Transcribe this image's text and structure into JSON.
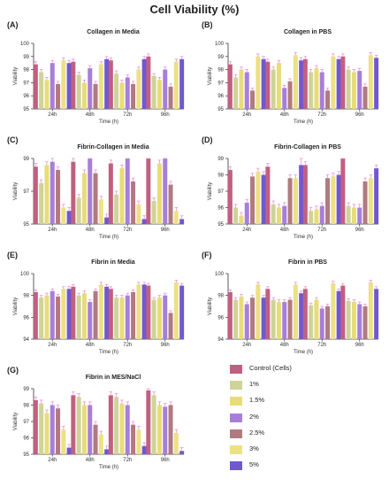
{
  "title": "Cell Viability (%)",
  "series_colors": [
    "#c06080",
    "#cfd39a",
    "#e8dc78",
    "#a77fd9",
    "#b07a80",
    "#ece088",
    "#7058d0"
  ],
  "error_color": "#e890dc",
  "legend": {
    "items": [
      "Control (Cells)",
      "1%",
      "1.5%",
      "2%",
      "2.5%",
      "3%",
      "5%"
    ]
  },
  "chart_data": [
    {
      "letter": "(A)",
      "title": "Collagen in Media",
      "type": "bar",
      "xlabel": "Time (h)",
      "ylabel": "Viability",
      "ylim": [
        95,
        100
      ],
      "yticks": [
        95,
        96,
        97,
        98,
        99,
        100
      ],
      "categories": [
        "24h",
        "48h",
        "72h",
        "96h"
      ],
      "series": [
        {
          "name": "Control (Cells)",
          "values": [
            98.4,
            98.6,
            98.7,
            99.0
          ],
          "errors": [
            0.2,
            0.2,
            0.2,
            0.2
          ]
        },
        {
          "name": "1%",
          "values": [
            97.8,
            97.6,
            97.7,
            97.5
          ],
          "errors": [
            0.2,
            0.2,
            0.2,
            0.2
          ]
        },
        {
          "name": "1.5%",
          "values": [
            97.2,
            97.0,
            97.0,
            97.2
          ],
          "errors": [
            0.2,
            0.2,
            0.2,
            0.2
          ]
        },
        {
          "name": "2%",
          "values": [
            98.5,
            98.1,
            97.4,
            98.0
          ],
          "errors": [
            0.2,
            0.2,
            0.2,
            0.2
          ]
        },
        {
          "name": "2.5%",
          "values": [
            96.9,
            96.9,
            96.9,
            96.7
          ],
          "errors": [
            0.2,
            0.2,
            0.2,
            0.2
          ]
        },
        {
          "name": "3%",
          "values": [
            98.7,
            98.4,
            98.0,
            98.6
          ],
          "errors": [
            0.2,
            0.2,
            0.2,
            0.2
          ]
        },
        {
          "name": "5%",
          "values": [
            98.5,
            98.8,
            98.8,
            98.8
          ],
          "errors": [
            0.2,
            0.2,
            0.2,
            0.2
          ]
        }
      ]
    },
    {
      "letter": "(B)",
      "title": "Collagen in PBS",
      "type": "bar",
      "xlabel": "Time (h)",
      "ylabel": "Viability",
      "ylim": [
        95,
        100
      ],
      "yticks": [
        95,
        96,
        97,
        98,
        99,
        100
      ],
      "categories": [
        "24h",
        "48h",
        "72h",
        "96h"
      ],
      "series": [
        {
          "name": "Control (Cells)",
          "values": [
            98.4,
            98.6,
            98.8,
            99.0
          ],
          "errors": [
            0.2,
            0.2,
            0.2,
            0.2
          ]
        },
        {
          "name": "1%",
          "values": [
            97.4,
            98.0,
            97.8,
            98.0
          ],
          "errors": [
            0.2,
            0.2,
            0.2,
            0.2
          ]
        },
        {
          "name": "1.5%",
          "values": [
            98.0,
            98.5,
            98.1,
            97.8
          ],
          "errors": [
            0.2,
            0.2,
            0.2,
            0.2
          ]
        },
        {
          "name": "2%",
          "values": [
            97.8,
            96.6,
            97.8,
            97.9
          ],
          "errors": [
            0.2,
            0.2,
            0.2,
            0.2
          ]
        },
        {
          "name": "2.5%",
          "values": [
            96.4,
            97.1,
            96.4,
            96.7
          ],
          "errors": [
            0.2,
            0.2,
            0.2,
            0.2
          ]
        },
        {
          "name": "3%",
          "values": [
            99.0,
            99.1,
            99.0,
            99.1
          ],
          "errors": [
            0.2,
            0.2,
            0.2,
            0.2
          ]
        },
        {
          "name": "5%",
          "values": [
            98.8,
            98.7,
            98.8,
            98.9
          ],
          "errors": [
            0.2,
            0.2,
            0.2,
            0.2
          ]
        }
      ]
    },
    {
      "letter": "(C)",
      "title": "Fibrin-Collagen in Media",
      "type": "bar",
      "xlabel": "Time (h)",
      "ylabel": "Viability",
      "ylim": [
        95,
        99
      ],
      "yticks": [
        95,
        97,
        99
      ],
      "categories": [
        "24h",
        "48h",
        "72h",
        "96h"
      ],
      "series": [
        {
          "name": "Control (Cells)",
          "values": [
            98.5,
            98.8,
            98.7,
            99.0
          ],
          "errors": [
            0.2,
            0.2,
            0.2,
            0.2
          ]
        },
        {
          "name": "1%",
          "values": [
            97.5,
            96.6,
            96.8,
            96.4
          ],
          "errors": [
            0.2,
            0.2,
            0.2,
            0.2
          ]
        },
        {
          "name": "1.5%",
          "values": [
            98.6,
            98.1,
            98.4,
            98.7
          ],
          "errors": [
            0.2,
            0.2,
            0.2,
            0.2
          ]
        },
        {
          "name": "2%",
          "values": [
            98.8,
            99.0,
            99.0,
            99.0
          ],
          "errors": [
            0.2,
            0.2,
            0.2,
            0.2
          ]
        },
        {
          "name": "2.5%",
          "values": [
            98.3,
            98.1,
            97.6,
            97.4
          ],
          "errors": [
            0.2,
            0.2,
            0.2,
            0.2
          ]
        },
        {
          "name": "3%",
          "values": [
            96.0,
            96.5,
            96.2,
            95.8
          ],
          "errors": [
            0.2,
            0.2,
            0.2,
            0.2
          ]
        },
        {
          "name": "5%",
          "values": [
            95.8,
            95.4,
            95.3,
            95.3
          ],
          "errors": [
            0.2,
            0.2,
            0.2,
            0.2
          ]
        }
      ]
    },
    {
      "letter": "(D)",
      "title": "Fibrin-Collagen in PBS",
      "type": "bar",
      "xlabel": "Time (h)",
      "ylabel": "Viability",
      "ylim": [
        95,
        99
      ],
      "yticks": [
        95,
        96,
        97,
        98,
        99
      ],
      "categories": [
        "24h",
        "48h",
        "72h",
        "96h"
      ],
      "series": [
        {
          "name": "Control (Cells)",
          "values": [
            98.3,
            98.5,
            98.6,
            99.0
          ],
          "errors": [
            0.2,
            0.2,
            0.2,
            0.2
          ]
        },
        {
          "name": "1%",
          "values": [
            96.0,
            96.2,
            95.8,
            96.1
          ],
          "errors": [
            0.2,
            0.2,
            0.2,
            0.2
          ]
        },
        {
          "name": "1.5%",
          "values": [
            95.5,
            96.0,
            95.9,
            96.0
          ],
          "errors": [
            0.2,
            0.2,
            0.2,
            0.2
          ]
        },
        {
          "name": "2%",
          "values": [
            96.3,
            96.1,
            96.1,
            96.0
          ],
          "errors": [
            0.2,
            0.2,
            0.2,
            0.2
          ]
        },
        {
          "name": "2.5%",
          "values": [
            97.9,
            97.8,
            97.8,
            97.6
          ],
          "errors": [
            0.2,
            0.2,
            0.2,
            0.2
          ]
        },
        {
          "name": "3%",
          "values": [
            98.2,
            97.8,
            97.9,
            97.8
          ],
          "errors": [
            0.2,
            0.2,
            0.2,
            0.2
          ]
        },
        {
          "name": "5%",
          "values": [
            98.0,
            98.6,
            98.0,
            98.4
          ],
          "errors": [
            0.2,
            0.6,
            0.2,
            0.2
          ]
        }
      ]
    },
    {
      "letter": "(E)",
      "title": "Fibrin in Media",
      "type": "bar",
      "xlabel": "Time (h)",
      "ylabel": "Viability",
      "ylim": [
        94,
        100
      ],
      "yticks": [
        94,
        96,
        98,
        100
      ],
      "categories": [
        "24h",
        "48h",
        "72h",
        "96h"
      ],
      "series": [
        {
          "name": "Control (Cells)",
          "values": [
            98.3,
            98.8,
            98.6,
            98.9
          ],
          "errors": [
            0.2,
            0.2,
            0.2,
            0.2
          ]
        },
        {
          "name": "1%",
          "values": [
            97.8,
            98.0,
            97.8,
            97.6
          ],
          "errors": [
            0.2,
            0.2,
            0.2,
            0.2
          ]
        },
        {
          "name": "1.5%",
          "values": [
            98.0,
            98.2,
            97.8,
            97.8
          ],
          "errors": [
            0.2,
            0.2,
            0.2,
            0.2
          ]
        },
        {
          "name": "2%",
          "values": [
            98.4,
            97.4,
            98.0,
            98.0
          ],
          "errors": [
            0.2,
            0.2,
            0.2,
            0.2
          ]
        },
        {
          "name": "2.5%",
          "values": [
            97.9,
            98.4,
            98.3,
            96.4
          ],
          "errors": [
            0.2,
            0.2,
            0.2,
            0.2
          ]
        },
        {
          "name": "3%",
          "values": [
            98.6,
            99.0,
            99.0,
            99.2
          ],
          "errors": [
            0.2,
            0.2,
            0.2,
            0.2
          ]
        },
        {
          "name": "5%",
          "values": [
            98.6,
            98.8,
            99.0,
            98.9
          ],
          "errors": [
            0.2,
            0.2,
            0.2,
            0.2
          ]
        }
      ]
    },
    {
      "letter": "(F)",
      "title": "Fibrin in PBS",
      "type": "bar",
      "xlabel": "Time (h)",
      "ylabel": "Viability",
      "ylim": [
        94,
        100
      ],
      "yticks": [
        94,
        96,
        98,
        100
      ],
      "categories": [
        "24h",
        "48h",
        "72h",
        "96h"
      ],
      "series": [
        {
          "name": "Control (Cells)",
          "values": [
            98.3,
            98.6,
            98.6,
            98.9
          ],
          "errors": [
            0.2,
            0.2,
            0.2,
            0.2
          ]
        },
        {
          "name": "1%",
          "values": [
            97.6,
            97.6,
            97.1,
            97.5
          ],
          "errors": [
            0.2,
            0.2,
            0.2,
            0.2
          ]
        },
        {
          "name": "1.5%",
          "values": [
            97.9,
            97.4,
            97.6,
            97.4
          ],
          "errors": [
            0.2,
            0.2,
            0.2,
            0.2
          ]
        },
        {
          "name": "2%",
          "values": [
            97.2,
            97.4,
            96.8,
            97.2
          ],
          "errors": [
            0.2,
            0.2,
            0.2,
            0.2
          ]
        },
        {
          "name": "2.5%",
          "values": [
            97.8,
            97.6,
            97.0,
            97.0
          ],
          "errors": [
            0.2,
            0.2,
            0.2,
            0.2
          ]
        },
        {
          "name": "3%",
          "values": [
            99.0,
            99.0,
            99.1,
            99.2
          ],
          "errors": [
            0.2,
            0.2,
            0.2,
            0.2
          ]
        },
        {
          "name": "5%",
          "values": [
            97.8,
            98.2,
            98.4,
            98.6
          ],
          "errors": [
            0.2,
            0.2,
            0.2,
            0.2
          ]
        }
      ]
    },
    {
      "letter": "(G)",
      "title": "Fibrin in MES/NaCl",
      "type": "bar",
      "xlabel": "Time (h)",
      "ylabel": "Viability",
      "ylim": [
        95,
        99
      ],
      "yticks": [
        95,
        96,
        97,
        98,
        99
      ],
      "categories": [
        "24h",
        "48h",
        "72h",
        "96h"
      ],
      "series": [
        {
          "name": "Control (Cells)",
          "values": [
            98.3,
            98.6,
            98.6,
            98.9
          ],
          "errors": [
            0.2,
            0.2,
            0.2,
            0.2
          ]
        },
        {
          "name": "1%",
          "values": [
            98.1,
            98.5,
            98.5,
            98.6
          ],
          "errors": [
            0.2,
            0.2,
            0.2,
            0.2
          ]
        },
        {
          "name": "1.5%",
          "values": [
            97.5,
            98.0,
            98.1,
            98.0
          ],
          "errors": [
            0.2,
            0.2,
            0.2,
            0.2
          ]
        },
        {
          "name": "2%",
          "values": [
            98.0,
            98.0,
            98.0,
            97.9
          ],
          "errors": [
            0.2,
            0.2,
            0.2,
            0.2
          ]
        },
        {
          "name": "2.5%",
          "values": [
            97.8,
            96.8,
            96.8,
            98.0
          ],
          "errors": [
            0.2,
            0.2,
            0.2,
            0.2
          ]
        },
        {
          "name": "3%",
          "values": [
            96.5,
            96.2,
            96.5,
            96.3
          ],
          "errors": [
            0.2,
            0.2,
            0.2,
            0.2
          ]
        },
        {
          "name": "5%",
          "values": [
            95.4,
            95.3,
            95.5,
            95.2
          ],
          "errors": [
            0.2,
            0.2,
            0.2,
            0.2
          ]
        }
      ]
    }
  ]
}
